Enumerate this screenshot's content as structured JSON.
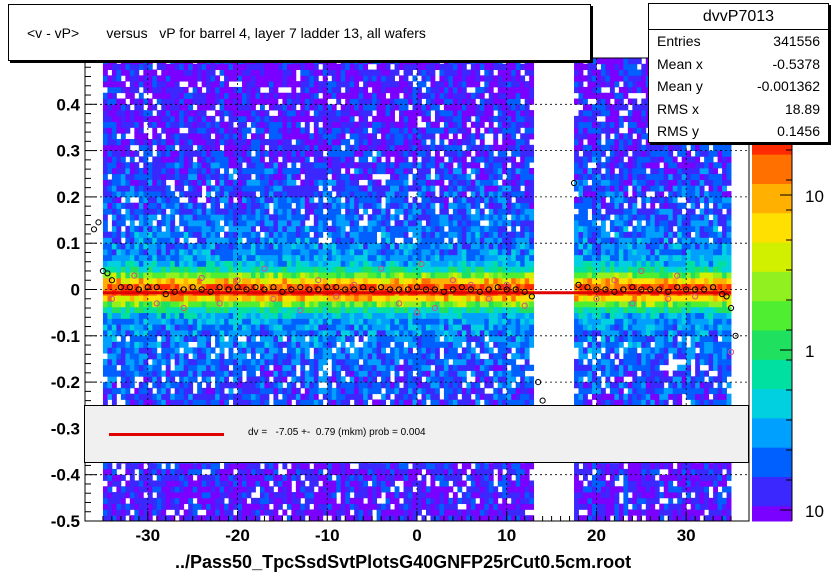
{
  "title": "<v - vP>       versus   vP for barrel 4, layer 7 ladder 13, all wafers",
  "stats": {
    "name": "dvvP7013",
    "rows": [
      {
        "label": "Entries",
        "value": "341556"
      },
      {
        "label": "Mean x",
        "value": "-0.5378"
      },
      {
        "label": "Mean y",
        "value": "-0.001362"
      },
      {
        "label": "RMS x",
        "value": "18.89"
      },
      {
        "label": "RMS y",
        "value": "0.1456"
      }
    ]
  },
  "fit_legend": "dv =   -7.05 +-  0.79 (mkm) prob = 0.004",
  "x_axis_title": "../Pass50_TpcSsdSvtPlotsG40GNFP25rCut0.5cm.root",
  "chart_data": {
    "type": "heatmap",
    "xlim": [
      -37,
      37
    ],
    "ylim": [
      -0.5,
      0.5
    ],
    "x_ticks": [
      -30,
      -20,
      -10,
      0,
      10,
      20,
      30
    ],
    "x_tick_labels": [
      "-30",
      "-20",
      "-10",
      "0",
      "10",
      "20",
      "30"
    ],
    "y_ticks": [
      -0.5,
      -0.4,
      -0.3,
      -0.2,
      -0.1,
      0,
      0.1,
      0.2,
      0.3,
      0.4
    ],
    "y_tick_labels": [
      "-0.5",
      "-0.4",
      "-0.3",
      "-0.2",
      "-0.1",
      "0",
      "0.1",
      "0.2",
      "0.3",
      "0.4"
    ],
    "grid": true,
    "z_scale": "log",
    "z_tick_labels": [
      "10",
      "1",
      "10"
    ],
    "populated_x_ranges": [
      [
        -35,
        13
      ],
      [
        17.5,
        35
      ]
    ],
    "colors": {
      "low": "#7a00ff",
      "mid": "#00d8c0",
      "high": "#ff2a00",
      "fit": "#e00000"
    },
    "fit_line": {
      "x": [
        -35,
        35
      ],
      "y": [
        -0.00705,
        -0.00705
      ]
    },
    "profile_points": {
      "x": [
        -36,
        -35.5,
        -35,
        -34.5,
        -34,
        -33,
        -32,
        -31,
        -30,
        -29,
        -28,
        -27,
        -26,
        -25,
        -24,
        -23,
        -22,
        -21,
        -20,
        -19,
        -18,
        -17,
        -16,
        -15,
        -14,
        -13,
        -12,
        -11,
        -10,
        -9,
        -8,
        -7,
        -6,
        -5,
        -4,
        -3,
        -2,
        -1,
        0,
        1,
        2,
        3,
        4,
        5,
        6,
        7,
        8,
        9,
        10,
        11,
        12,
        12.8,
        13.5,
        14,
        17.5,
        18,
        19,
        20,
        21,
        22,
        23,
        24,
        25,
        26,
        27,
        28,
        29,
        30,
        31,
        32,
        33,
        34,
        34.5,
        35,
        35.5
      ],
      "y": [
        0.13,
        0.145,
        0.04,
        0.035,
        0.02,
        0.005,
        0.005,
        0.0,
        0.005,
        0.005,
        -0.01,
        -0.005,
        0.0,
        0.005,
        0.0,
        -0.005,
        0.005,
        0.0,
        0.005,
        0.0,
        0.005,
        0.0,
        0.005,
        -0.005,
        0.0,
        0.005,
        0.0,
        0.0,
        0.005,
        0.005,
        0.0,
        0.0,
        0.005,
        0.0,
        0.005,
        0.0,
        0.0,
        0.0,
        0.005,
        0.0,
        0.0,
        -0.005,
        0.0,
        0.005,
        0.0,
        -0.005,
        0.0,
        0.005,
        0.0,
        0.0,
        -0.005,
        -0.015,
        -0.2,
        -0.24,
        0.23,
        0.01,
        0.005,
        0.0,
        0.0,
        -0.005,
        0.0,
        0.005,
        0.0,
        0.0,
        0.0,
        -0.005,
        0.005,
        0.0,
        0.0,
        0.0,
        0.005,
        -0.01,
        -0.015,
        -0.04,
        -0.1
      ]
    },
    "outlier_points": {
      "x": [
        -34,
        -31.5,
        -29,
        -26,
        -24,
        -22,
        -20,
        -17,
        -16,
        -13,
        -11,
        -9,
        -7,
        -4,
        -2,
        0,
        0.5,
        2,
        4,
        6,
        8,
        10,
        12,
        20,
        22,
        24,
        25,
        28,
        29,
        31,
        35
      ],
      "y": [
        -0.02,
        0.03,
        -0.03,
        -0.04,
        0.025,
        -0.03,
        0.02,
        0.045,
        -0.02,
        -0.045,
        0.02,
        -0.015,
        0.01,
        0.045,
        -0.03,
        -0.05,
        0.055,
        -0.04,
        0.02,
        0.01,
        -0.02,
        0.01,
        -0.035,
        -0.02,
        0.02,
        -0.03,
        0.04,
        -0.02,
        0.03,
        -0.015,
        -0.135
      ]
    }
  }
}
